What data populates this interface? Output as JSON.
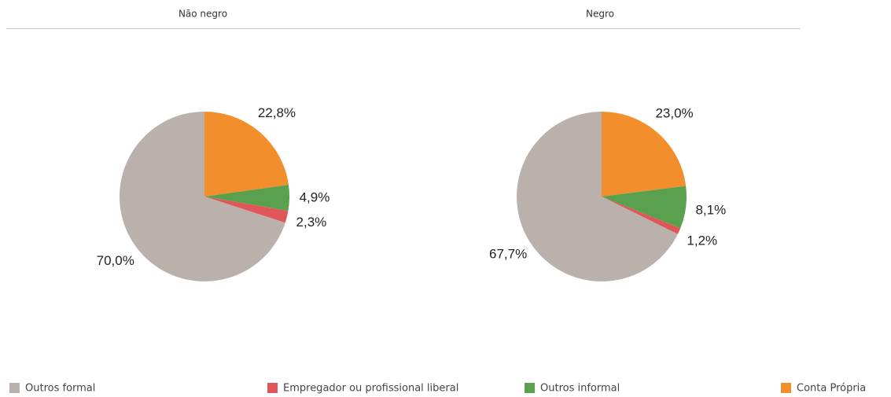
{
  "chart_data": [
    {
      "type": "pie",
      "title": "Não negro",
      "categories": [
        "Outros formal",
        "Empregador ou profissional liberal",
        "Outros informal",
        "Conta Própria"
      ],
      "values": [
        70.0,
        2.3,
        4.9,
        22.8
      ],
      "value_labels": [
        "70,0%",
        "2,3%",
        "4,9%",
        "22,8%"
      ],
      "colors": [
        "#bab0ac",
        "#e15759",
        "#59a14f",
        "#f28e2b"
      ]
    },
    {
      "type": "pie",
      "title": "Negro",
      "categories": [
        "Outros formal",
        "Empregador ou profissional liberal",
        "Outros informal",
        "Conta Própria"
      ],
      "values": [
        67.7,
        1.2,
        8.1,
        23.0
      ],
      "value_labels": [
        "67,7%",
        "1,2%",
        "8,1%",
        "23,0%"
      ],
      "colors": [
        "#bab0ac",
        "#e15759",
        "#59a14f",
        "#f28e2b"
      ]
    }
  ]
}
